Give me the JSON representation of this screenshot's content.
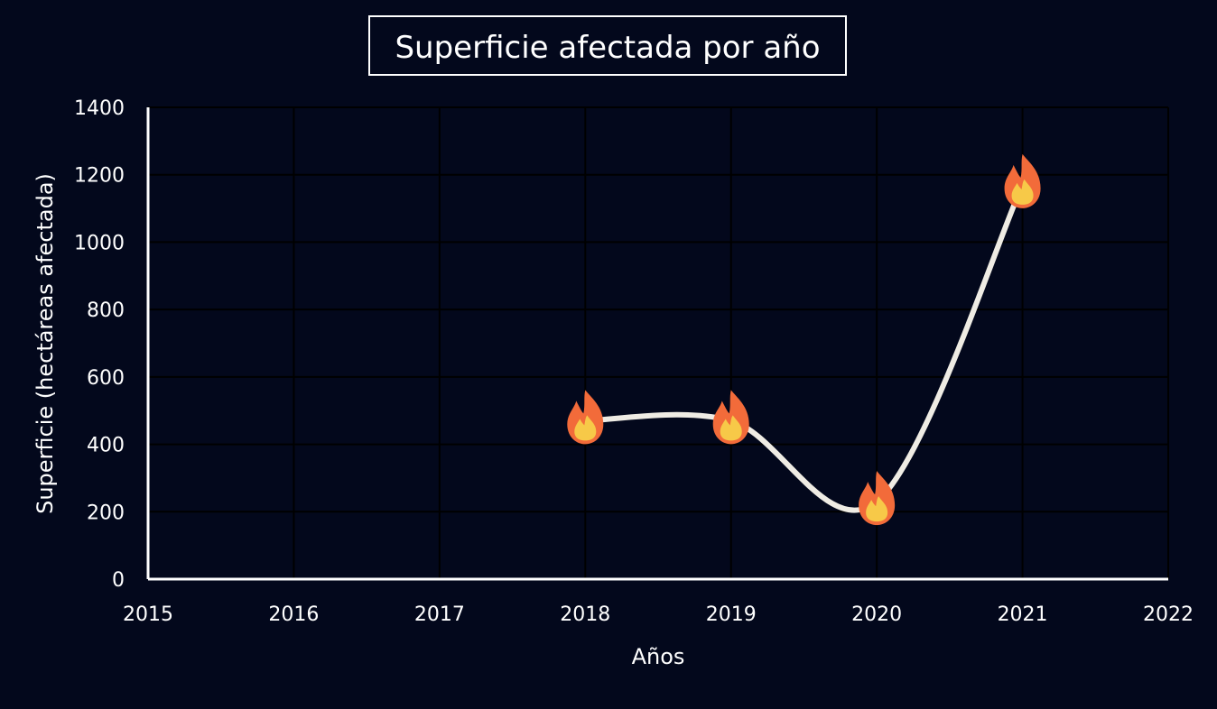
{
  "chart_data": {
    "type": "line",
    "title": "Superficie afectada por año",
    "xlabel": "Años",
    "ylabel": "Superficie (hectáreas afectada)",
    "xlim": [
      2015,
      2022
    ],
    "ylim": [
      0,
      1400
    ],
    "x_ticks": [
      2015,
      2016,
      2017,
      2018,
      2019,
      2020,
      2021,
      2022
    ],
    "y_ticks": [
      0,
      200,
      400,
      600,
      800,
      1000,
      1200,
      1400
    ],
    "grid": true,
    "smooth": true,
    "marker": "fire-icon",
    "series": [
      {
        "x": [
          2018,
          2019,
          2020,
          2021
        ],
        "values": [
          470,
          470,
          230,
          1170
        ]
      }
    ],
    "colors": {
      "background": "#03081c",
      "line": "#efece4",
      "grid": "#000000",
      "axis": "#ffffff",
      "flame_outer": "#f26b3a",
      "flame_inner": "#f7c948"
    }
  }
}
